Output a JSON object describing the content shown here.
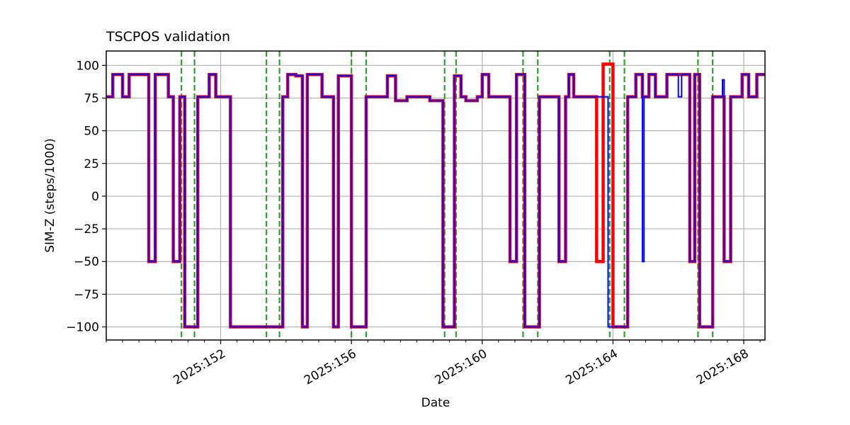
{
  "chart_data": {
    "type": "line",
    "title": "TSCPOS validation",
    "xlabel": "Date",
    "ylabel": "SIM-Z (steps/1000)",
    "xlim": [
      148.5,
      168.65
    ],
    "ylim": [
      -110,
      111
    ],
    "grid": true,
    "legend": "none",
    "x_ticks": [
      {
        "value": 152,
        "label": "2025:152"
      },
      {
        "value": 156,
        "label": "2025:156"
      },
      {
        "value": 160,
        "label": "2025:160"
      },
      {
        "value": 164,
        "label": "2025:164"
      },
      {
        "value": 168,
        "label": "2025:168"
      }
    ],
    "x_minor_every": 0.5,
    "y_ticks": [
      100,
      75,
      50,
      25,
      0,
      -25,
      -50,
      -75,
      -100
    ],
    "vlines": {
      "color": "#2ca02c",
      "x": [
        150.8,
        151.2,
        153.4,
        153.8,
        156.0,
        156.45,
        158.85,
        159.2,
        161.25,
        161.7,
        163.9,
        164.35,
        166.6,
        167.05
      ]
    },
    "series": [
      {
        "color": "#ff0000",
        "width": 4.5,
        "points": [
          [
            148.5,
            76
          ],
          [
            148.7,
            76
          ],
          [
            148.7,
            93
          ],
          [
            149.0,
            93
          ],
          [
            149.0,
            76
          ],
          [
            149.2,
            76
          ],
          [
            149.2,
            93
          ],
          [
            149.8,
            93
          ],
          [
            149.8,
            -50
          ],
          [
            150.0,
            -50
          ],
          [
            150.0,
            93
          ],
          [
            150.4,
            93
          ],
          [
            150.4,
            76
          ],
          [
            150.55,
            76
          ],
          [
            150.55,
            -50
          ],
          [
            150.75,
            -50
          ],
          [
            150.75,
            76
          ],
          [
            150.9,
            76
          ],
          [
            150.9,
            -100
          ],
          [
            151.3,
            -100
          ],
          [
            151.3,
            76
          ],
          [
            151.65,
            76
          ],
          [
            151.65,
            93
          ],
          [
            151.85,
            93
          ],
          [
            151.85,
            76
          ],
          [
            152.3,
            76
          ],
          [
            152.3,
            -100
          ],
          [
            153.9,
            -100
          ],
          [
            153.9,
            76
          ],
          [
            154.05,
            76
          ],
          [
            154.05,
            93
          ],
          [
            154.3,
            93
          ],
          [
            154.3,
            92
          ],
          [
            154.5,
            92
          ],
          [
            154.5,
            -100
          ],
          [
            154.65,
            -100
          ],
          [
            154.65,
            93
          ],
          [
            155.1,
            93
          ],
          [
            155.1,
            76
          ],
          [
            155.45,
            76
          ],
          [
            155.45,
            -100
          ],
          [
            155.6,
            -100
          ],
          [
            155.6,
            92
          ],
          [
            156.0,
            92
          ],
          [
            156.0,
            -100
          ],
          [
            156.45,
            -100
          ],
          [
            156.45,
            76
          ],
          [
            157.1,
            76
          ],
          [
            157.1,
            92
          ],
          [
            157.35,
            92
          ],
          [
            157.35,
            73
          ],
          [
            157.7,
            73
          ],
          [
            157.7,
            76
          ],
          [
            158.4,
            76
          ],
          [
            158.4,
            73
          ],
          [
            158.8,
            73
          ],
          [
            158.8,
            -100
          ],
          [
            159.15,
            -100
          ],
          [
            159.15,
            92
          ],
          [
            159.35,
            92
          ],
          [
            159.35,
            76
          ],
          [
            159.5,
            76
          ],
          [
            159.5,
            73
          ],
          [
            159.85,
            73
          ],
          [
            159.85,
            76
          ],
          [
            160.0,
            76
          ],
          [
            160.0,
            93
          ],
          [
            160.2,
            93
          ],
          [
            160.2,
            76
          ],
          [
            160.85,
            76
          ],
          [
            160.85,
            -50
          ],
          [
            161.05,
            -50
          ],
          [
            161.05,
            93
          ],
          [
            161.3,
            93
          ],
          [
            161.3,
            -100
          ],
          [
            161.75,
            -100
          ],
          [
            161.75,
            76
          ],
          [
            162.35,
            76
          ],
          [
            162.35,
            -50
          ],
          [
            162.55,
            -50
          ],
          [
            162.55,
            76
          ],
          [
            162.65,
            76
          ],
          [
            162.65,
            93
          ],
          [
            162.8,
            93
          ],
          [
            162.8,
            76
          ],
          [
            163.5,
            76
          ],
          [
            163.5,
            -50
          ],
          [
            163.7,
            -50
          ],
          [
            163.7,
            101
          ],
          [
            164.0,
            101
          ],
          [
            164.0,
            -100
          ],
          [
            164.45,
            -100
          ],
          [
            164.45,
            76
          ],
          [
            164.7,
            76
          ],
          [
            164.7,
            93
          ],
          [
            164.9,
            93
          ],
          [
            164.9,
            76
          ],
          [
            165.1,
            76
          ],
          [
            165.1,
            93
          ],
          [
            165.3,
            93
          ],
          [
            165.3,
            76
          ],
          [
            165.65,
            76
          ],
          [
            165.65,
            93
          ],
          [
            166.35,
            93
          ],
          [
            166.35,
            -50
          ],
          [
            166.5,
            -50
          ],
          [
            166.5,
            93
          ],
          [
            166.65,
            93
          ],
          [
            166.65,
            -100
          ],
          [
            167.05,
            -100
          ],
          [
            167.05,
            76
          ],
          [
            167.4,
            76
          ],
          [
            167.4,
            -50
          ],
          [
            167.6,
            -50
          ],
          [
            167.6,
            76
          ],
          [
            167.95,
            76
          ],
          [
            167.95,
            93
          ],
          [
            168.15,
            93
          ],
          [
            168.15,
            76
          ],
          [
            168.4,
            76
          ],
          [
            168.4,
            93
          ],
          [
            168.65,
            93
          ]
        ]
      },
      {
        "color": "#0000ff",
        "width": 2,
        "points": [
          [
            148.5,
            76
          ],
          [
            148.7,
            76
          ],
          [
            148.7,
            93
          ],
          [
            149.0,
            93
          ],
          [
            149.0,
            76
          ],
          [
            149.2,
            76
          ],
          [
            149.2,
            93
          ],
          [
            149.8,
            93
          ],
          [
            149.8,
            -50
          ],
          [
            150.0,
            -50
          ],
          [
            150.0,
            93
          ],
          [
            150.4,
            93
          ],
          [
            150.4,
            76
          ],
          [
            150.55,
            76
          ],
          [
            150.55,
            -50
          ],
          [
            150.75,
            -50
          ],
          [
            150.75,
            76
          ],
          [
            150.9,
            76
          ],
          [
            150.9,
            -100
          ],
          [
            151.3,
            -100
          ],
          [
            151.3,
            76
          ],
          [
            151.65,
            76
          ],
          [
            151.65,
            93
          ],
          [
            151.85,
            93
          ],
          [
            151.85,
            76
          ],
          [
            152.3,
            76
          ],
          [
            152.3,
            -100
          ],
          [
            153.9,
            -100
          ],
          [
            153.9,
            76
          ],
          [
            154.05,
            76
          ],
          [
            154.05,
            93
          ],
          [
            154.3,
            93
          ],
          [
            154.3,
            92
          ],
          [
            154.5,
            92
          ],
          [
            154.5,
            -100
          ],
          [
            154.65,
            -100
          ],
          [
            154.65,
            93
          ],
          [
            155.1,
            93
          ],
          [
            155.1,
            76
          ],
          [
            155.45,
            76
          ],
          [
            155.45,
            -100
          ],
          [
            155.6,
            -100
          ],
          [
            155.6,
            92
          ],
          [
            156.0,
            92
          ],
          [
            156.0,
            -100
          ],
          [
            156.45,
            -100
          ],
          [
            156.45,
            76
          ],
          [
            157.1,
            76
          ],
          [
            157.1,
            92
          ],
          [
            157.35,
            92
          ],
          [
            157.35,
            73
          ],
          [
            157.7,
            73
          ],
          [
            157.7,
            76
          ],
          [
            158.4,
            76
          ],
          [
            158.4,
            73
          ],
          [
            158.8,
            73
          ],
          [
            158.8,
            -100
          ],
          [
            159.15,
            -100
          ],
          [
            159.15,
            92
          ],
          [
            159.35,
            92
          ],
          [
            159.35,
            76
          ],
          [
            159.5,
            76
          ],
          [
            159.5,
            73
          ],
          [
            159.85,
            73
          ],
          [
            159.85,
            76
          ],
          [
            160.0,
            76
          ],
          [
            160.0,
            93
          ],
          [
            160.2,
            93
          ],
          [
            160.2,
            76
          ],
          [
            160.85,
            76
          ],
          [
            160.85,
            -50
          ],
          [
            161.05,
            -50
          ],
          [
            161.05,
            93
          ],
          [
            161.3,
            93
          ],
          [
            161.3,
            -100
          ],
          [
            161.75,
            -100
          ],
          [
            161.75,
            76
          ],
          [
            162.35,
            76
          ],
          [
            162.35,
            -50
          ],
          [
            162.55,
            -50
          ],
          [
            162.55,
            76
          ],
          [
            162.65,
            76
          ],
          [
            162.65,
            93
          ],
          [
            162.8,
            93
          ],
          [
            162.8,
            76
          ],
          [
            163.85,
            76
          ],
          [
            163.85,
            -100
          ],
          [
            164.45,
            -100
          ],
          [
            164.45,
            76
          ],
          [
            164.7,
            76
          ],
          [
            164.7,
            93
          ],
          [
            164.9,
            93
          ],
          [
            164.9,
            -50
          ],
          [
            164.95,
            -50
          ],
          [
            164.95,
            76
          ],
          [
            165.1,
            76
          ],
          [
            165.1,
            93
          ],
          [
            165.3,
            93
          ],
          [
            165.3,
            76
          ],
          [
            165.65,
            76
          ],
          [
            165.65,
            93
          ],
          [
            166.0,
            93
          ],
          [
            166.0,
            76
          ],
          [
            166.1,
            76
          ],
          [
            166.1,
            93
          ],
          [
            166.35,
            93
          ],
          [
            166.35,
            -50
          ],
          [
            166.5,
            -50
          ],
          [
            166.5,
            93
          ],
          [
            166.65,
            93
          ],
          [
            166.65,
            -100
          ],
          [
            167.05,
            -100
          ],
          [
            167.05,
            76
          ],
          [
            167.35,
            76
          ],
          [
            167.35,
            89
          ],
          [
            167.4,
            89
          ],
          [
            167.4,
            -50
          ],
          [
            167.6,
            -50
          ],
          [
            167.6,
            76
          ],
          [
            167.95,
            76
          ],
          [
            167.95,
            93
          ],
          [
            168.15,
            93
          ],
          [
            168.15,
            76
          ],
          [
            168.4,
            76
          ],
          [
            168.4,
            93
          ],
          [
            168.65,
            93
          ]
        ]
      }
    ]
  }
}
